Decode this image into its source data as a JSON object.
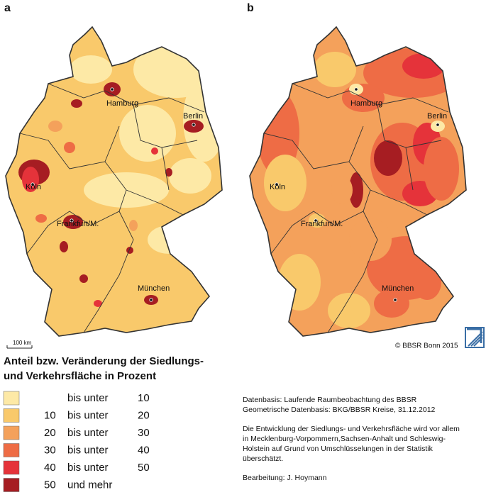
{
  "panels": [
    {
      "label": "a",
      "cities": [
        "Hamburg",
        "Berlin",
        "Köln",
        "Frankfurt/M.",
        "München"
      ],
      "scale_bar": "100 km"
    },
    {
      "label": "b",
      "cities": [
        "Hamburg",
        "Berlin",
        "Köln",
        "Frankfurt/M.",
        "München"
      ],
      "copyright": "© BBSR Bonn 2015"
    }
  ],
  "legend": {
    "title_lines": [
      "Anteil bzw. Veränderung der Siedlungs-",
      "und Verkehrsfläche in Prozent"
    ],
    "classes": [
      {
        "connector": "bis unter",
        "to": 10,
        "color": "#fde9a6"
      },
      {
        "from": 10,
        "connector": "bis unter",
        "to": 20,
        "color": "#f9c96b"
      },
      {
        "from": 20,
        "connector": "bis unter",
        "to": 30,
        "color": "#f4a15b"
      },
      {
        "from": 30,
        "connector": "bis unter",
        "to": 40,
        "color": "#ee6c45"
      },
      {
        "from": 40,
        "connector": "bis unter",
        "to": 50,
        "color": "#e5333a"
      },
      {
        "from": 50,
        "connector": "und mehr",
        "color": "#a61d22"
      }
    ]
  },
  "notes": {
    "source_lines": [
      "Datenbasis: Laufende Raumbeobachtung des BBSR",
      "Geometrische Datenbasis: BKG/BBSR Kreise, 31.12.2012"
    ],
    "remark_lines": [
      "Die Entwicklung der Siedlungs- und Verkehrsfläche wird vor allem",
      "in Mecklenburg-Vorpommern,Sachsen-Anhalt und Schleswig-",
      "Holstein auf Grund von Umschlüsselungen in der Statistik",
      "überschätzt."
    ],
    "editor": "Bearbeitung: J. Hoymann"
  }
}
